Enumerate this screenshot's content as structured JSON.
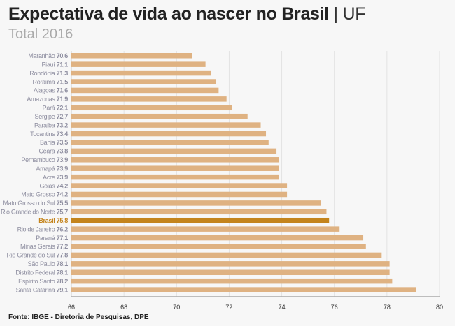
{
  "title": "Expectativa de vida ao nascer no Brasil",
  "title_suffix": "| UF",
  "subtitle": "Total 2016",
  "source": "Fonte: IBGE - Diretoria de Pesquisas, DPE",
  "colors": {
    "bar": "#dfb282",
    "highlight": "#c4841c",
    "label": "#8e8ea0",
    "highlight_label": "#c4841c"
  },
  "chart_data": {
    "type": "bar",
    "orientation": "horizontal",
    "xlim": [
      66,
      80
    ],
    "xticks": [
      66,
      68,
      70,
      72,
      74,
      76,
      78,
      80
    ],
    "grid": true,
    "highlight": "Brasil",
    "categories": [
      "Maranhão",
      "Piauí",
      "Rondônia",
      "Roraima",
      "Alagoas",
      "Amazonas",
      "Pará",
      "Sergipe",
      "Paraíba",
      "Tocantins",
      "Bahia",
      "Ceará",
      "Pernambuco",
      "Amapá",
      "Acre",
      "Goiás",
      "Mato Grosso",
      "Mato Grosso do Sul",
      "Rio Grande do Norte",
      "Brasil",
      "Rio de Janeiro",
      "Paraná",
      "Minas Gerais",
      "Rio Grande do Sul",
      "São Paulo",
      "Distrito Federal",
      "Espírito Santo",
      "Santa Catarina"
    ],
    "values": [
      70.6,
      71.1,
      71.3,
      71.5,
      71.6,
      71.9,
      72.1,
      72.7,
      73.2,
      73.4,
      73.5,
      73.8,
      73.9,
      73.9,
      73.9,
      74.2,
      74.2,
      75.5,
      75.7,
      75.8,
      76.2,
      77.1,
      77.2,
      77.8,
      78.1,
      78.1,
      78.2,
      79.1
    ],
    "value_labels": [
      "70,6",
      "71,1",
      "71,3",
      "71,5",
      "71,6",
      "71,9",
      "72,1",
      "72,7",
      "73,2",
      "73,4",
      "73,5",
      "73,8",
      "73,9",
      "73,9",
      "73,9",
      "74,2",
      "74,2",
      "75,5",
      "75,7",
      "75,8",
      "76,2",
      "77,1",
      "77,2",
      "77,8",
      "78,1",
      "78,1",
      "78,2",
      "79,1"
    ]
  }
}
